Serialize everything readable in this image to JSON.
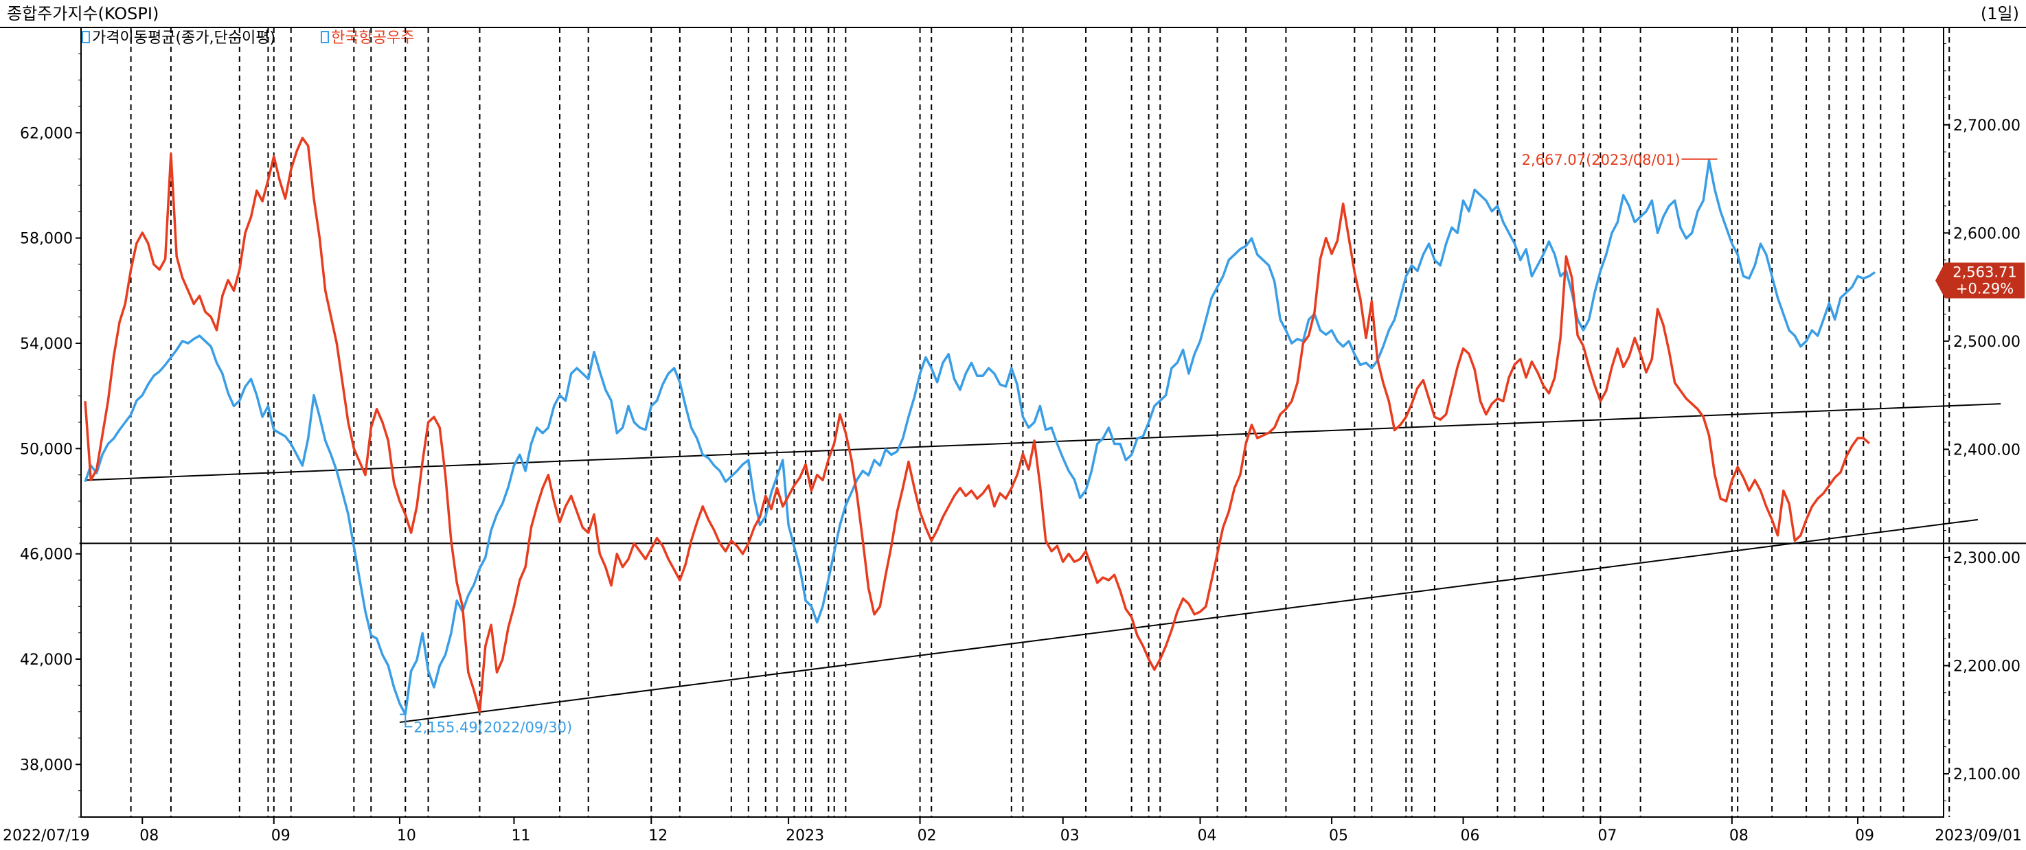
{
  "title": "종합주가지수(KOSPI)",
  "period": "(1일)",
  "legend": {
    "item1": "가격이동평균(종가,단순이평)",
    "item2": "한국항공우주"
  },
  "colors": {
    "kospi": "#3a9ee6",
    "kai": "#e83c1e",
    "trendline": "#000000",
    "grid": "#000000",
    "badge": "#c0301a"
  },
  "annotations": {
    "high": "2,667.07(2023/08/01)",
    "low": "2,155.49(2022/09/30)",
    "last_value": "2,563.71",
    "last_change": "+0.29%"
  },
  "chart_data": {
    "type": "line",
    "x_start": "2022/07/19",
    "x_end": "2023/09/01",
    "x_ticks": [
      "2022/07/19",
      "08",
      "09",
      "10",
      "11",
      "12",
      "2023",
      "02",
      "03",
      "04",
      "05",
      "06",
      "07",
      "08",
      "09",
      "2023/09/01"
    ],
    "left_axis": {
      "ticks": [
        "38,000",
        "42,000",
        "46,000",
        "50,000",
        "54,000",
        "58,000",
        "62,000"
      ],
      "ylim": [
        36000,
        66000
      ]
    },
    "right_axis": {
      "ticks": [
        "2,100.00",
        "2,200.00",
        "2,300.00",
        "2,400.00",
        "2,500.00",
        "2,600.00",
        "2,700.00"
      ],
      "ylim": [
        2060,
        2790
      ]
    },
    "series": [
      {
        "name": "종합주가지수(KOSPI)",
        "axis": "right",
        "values": [
          2370,
          2385,
          2378,
          2395,
          2405,
          2410,
          2418,
          2425,
          2432,
          2445,
          2450,
          2460,
          2468,
          2472,
          2478,
          2485,
          2492,
          2500,
          2498,
          2502,
          2505,
          2500,
          2495,
          2480,
          2470,
          2452,
          2440,
          2445,
          2458,
          2465,
          2450,
          2430,
          2440,
          2418,
          2415,
          2412,
          2405,
          2395,
          2385,
          2410,
          2450,
          2430,
          2408,
          2395,
          2380,
          2360,
          2340,
          2310,
          2280,
          2250,
          2228,
          2225,
          2210,
          2200,
          2180,
          2165,
          2155,
          2195,
          2205,
          2230,
          2195,
          2180,
          2200,
          2210,
          2230,
          2260,
          2250,
          2265,
          2275,
          2290,
          2300,
          2325,
          2340,
          2350,
          2365,
          2385,
          2395,
          2380,
          2405,
          2420,
          2415,
          2420,
          2440,
          2450,
          2445,
          2470,
          2475,
          2470,
          2465,
          2490,
          2472,
          2455,
          2445,
          2415,
          2420,
          2440,
          2425,
          2420,
          2418,
          2440,
          2445,
          2460,
          2470,
          2475,
          2462,
          2440,
          2420,
          2410,
          2395,
          2392,
          2385,
          2380,
          2370,
          2375,
          2380,
          2386,
          2390,
          2355,
          2330,
          2338,
          2360,
          2375,
          2390,
          2330,
          2310,
          2290,
          2260,
          2255,
          2240,
          2255,
          2280,
          2305,
          2330,
          2348,
          2360,
          2372,
          2380,
          2376,
          2390,
          2385,
          2400,
          2395,
          2398,
          2410,
          2430,
          2448,
          2470,
          2485,
          2475,
          2462,
          2480,
          2488,
          2465,
          2455,
          2470,
          2480,
          2468,
          2468,
          2475,
          2470,
          2460,
          2458,
          2475,
          2460,
          2430,
          2420,
          2425,
          2440,
          2418,
          2420,
          2405,
          2392,
          2380,
          2372,
          2355,
          2362,
          2380,
          2405,
          2410,
          2420,
          2405,
          2405,
          2390,
          2395,
          2410,
          2412,
          2425,
          2440,
          2445,
          2450,
          2475,
          2480,
          2492,
          2470,
          2488,
          2500,
          2520,
          2540,
          2550,
          2560,
          2575,
          2580,
          2585,
          2588,
          2595,
          2580,
          2575,
          2570,
          2555,
          2520,
          2510,
          2498,
          2502,
          2500,
          2520,
          2525,
          2510,
          2506,
          2510,
          2500,
          2495,
          2500,
          2488,
          2478,
          2480,
          2475,
          2482,
          2495,
          2510,
          2520,
          2540,
          2560,
          2570,
          2565,
          2580,
          2590,
          2575,
          2570,
          2590,
          2605,
          2600,
          2630,
          2620,
          2640,
          2635,
          2630,
          2620,
          2625,
          2610,
          2600,
          2590,
          2575,
          2585,
          2560,
          2570,
          2580,
          2592,
          2580,
          2560,
          2565,
          2545,
          2520,
          2510,
          2520,
          2545,
          2565,
          2580,
          2600,
          2610,
          2635,
          2625,
          2610,
          2615,
          2620,
          2630,
          2600,
          2615,
          2625,
          2630,
          2605,
          2595,
          2600,
          2620,
          2630,
          2667,
          2640,
          2620,
          2605,
          2590,
          2580,
          2560,
          2558,
          2570,
          2590,
          2580,
          2560,
          2540,
          2525,
          2510,
          2505,
          2495,
          2500,
          2510,
          2505,
          2520,
          2535,
          2520,
          2540,
          2545,
          2550,
          2560,
          2558,
          2560,
          2563.71
        ]
      },
      {
        "name": "한국항공우주",
        "axis": "left",
        "values": [
          51800,
          48800,
          49200,
          50500,
          51800,
          53500,
          54800,
          55500,
          56800,
          57800,
          58200,
          57800,
          57000,
          56800,
          57200,
          61200,
          57300,
          56500,
          56000,
          55500,
          55800,
          55200,
          55000,
          54500,
          55800,
          56400,
          56000,
          56800,
          58200,
          58800,
          59800,
          59400,
          60200,
          61100,
          60200,
          59500,
          60600,
          61300,
          61800,
          61500,
          59500,
          58000,
          56000,
          55000,
          54000,
          52500,
          51000,
          50000,
          49500,
          49000,
          50800,
          51500,
          51000,
          50300,
          48700,
          48000,
          47500,
          46800,
          47800,
          49500,
          51000,
          51200,
          50800,
          49000,
          46500,
          44900,
          44000,
          41500,
          40800,
          40000,
          42500,
          43300,
          41500,
          42000,
          43200,
          44000,
          45000,
          45500,
          47000,
          47800,
          48500,
          49000,
          48000,
          47200,
          47800,
          48200,
          47600,
          47000,
          46800,
          47500,
          46000,
          45500,
          44800,
          46000,
          45500,
          45800,
          46400,
          46100,
          45800,
          46200,
          46600,
          46300,
          45800,
          45400,
          45000,
          45600,
          46500,
          47200,
          47800,
          47300,
          46900,
          46400,
          46100,
          46500,
          46300,
          46000,
          46400,
          47000,
          47400,
          48200,
          47700,
          48500,
          47800,
          48200,
          48600,
          48900,
          49400,
          48400,
          49000,
          48800,
          49600,
          50200,
          51300,
          50600,
          49600,
          48200,
          46500,
          44700,
          43700,
          44000,
          45200,
          46300,
          47600,
          48500,
          49500,
          48500,
          47600,
          47000,
          46500,
          46900,
          47400,
          47800,
          48200,
          48500,
          48200,
          48400,
          48100,
          48300,
          48600,
          47800,
          48300,
          48100,
          48500,
          49000,
          49800,
          49200,
          50300,
          48600,
          46500,
          46100,
          46300,
          45700,
          46000,
          45700,
          45800,
          46100,
          45500,
          44900,
          45100,
          45000,
          45200,
          44600,
          43900,
          43600,
          42900,
          42500,
          42000,
          41600,
          42000,
          42500,
          43100,
          43800,
          44300,
          44100,
          43700,
          43800,
          44000,
          45000,
          46000,
          47000,
          47600,
          48500,
          49000,
          50200,
          50900,
          50400,
          50500,
          50600,
          50800,
          51300,
          51500,
          51800,
          52500,
          54000,
          54300,
          55200,
          57200,
          58000,
          57400,
          57900,
          59300,
          58000,
          56700,
          55700,
          54200,
          55600,
          53400,
          52500,
          51800,
          50700,
          50900,
          51200,
          51700,
          52300,
          52600,
          51900,
          51200,
          51100,
          51300,
          52200,
          53100,
          53800,
          53600,
          53000,
          51800,
          51300,
          51700,
          51900,
          51800,
          52700,
          53200,
          53400,
          52700,
          53300,
          52900,
          52400,
          52100,
          52700,
          54200,
          57300,
          56500,
          54300,
          53900,
          53100,
          52400,
          51800,
          52200,
          53100,
          53800,
          53100,
          53500,
          54200,
          53600,
          52900,
          53400,
          55300,
          54700,
          53700,
          52500,
          52200,
          51900,
          51700,
          51500,
          51200,
          50500,
          49000,
          48100,
          48000,
          48800,
          49300,
          48900,
          48400,
          48800,
          48400,
          47800,
          47300,
          46700,
          48400,
          47900,
          46500,
          46700,
          47300,
          47800,
          48100,
          48300,
          48600,
          48900,
          49100,
          49700,
          50100,
          50400,
          50400,
          50200
        ]
      }
    ],
    "trendlines": [
      {
        "axis": "left",
        "from": [
          0,
          48800
        ],
        "to": [
          335,
          51700
        ]
      },
      {
        "axis": "left",
        "from": [
          -1,
          46400
        ],
        "to": [
          359,
          46400
        ]
      },
      {
        "axis": "left",
        "from": [
          55,
          39600
        ],
        "to": [
          331,
          47300
        ]
      }
    ],
    "x_tick_index": [
      0,
      10,
      33,
      55,
      75,
      99,
      123,
      146,
      171,
      195,
      218,
      241,
      265,
      288,
      310,
      327
    ],
    "vertical_event_lines_index": [
      8,
      15,
      27,
      32,
      33,
      36,
      47,
      50,
      56,
      60,
      69,
      83,
      88,
      99,
      104,
      113,
      116,
      119,
      121,
      124,
      126,
      127,
      130,
      131,
      133,
      146,
      148,
      162,
      164,
      175,
      183,
      186,
      188,
      198,
      203,
      210,
      222,
      225,
      231,
      232,
      236,
      247,
      250,
      255,
      262,
      265,
      272,
      288,
      289,
      295,
      301,
      305,
      308,
      311,
      314,
      318,
      326
    ]
  }
}
